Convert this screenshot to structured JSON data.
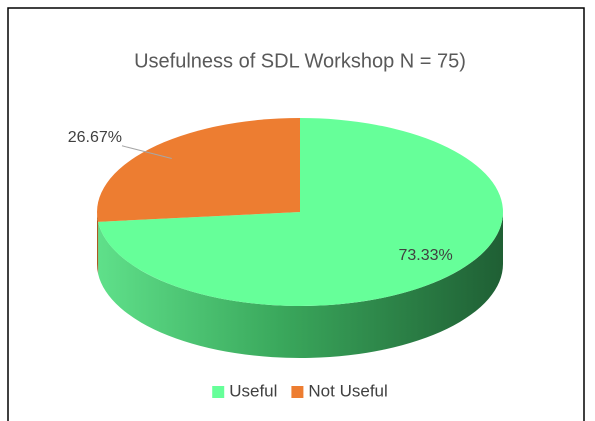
{
  "chart_data": {
    "type": "pie",
    "title": "Usefulness of SDL Workshop N = 75)",
    "categories": [
      "Useful",
      "Not Useful"
    ],
    "values": [
      73.33,
      26.67
    ],
    "value_labels": [
      "73.33%",
      "26.67%"
    ],
    "colors": [
      "#66ff99",
      "#ed7d31"
    ],
    "side_colors": [
      "#3fbf6a",
      "#b85a1f"
    ],
    "legend": "bottom"
  }
}
